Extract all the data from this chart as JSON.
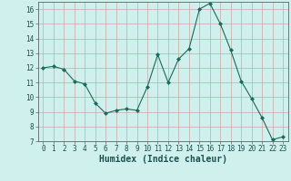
{
  "x": [
    0,
    1,
    2,
    3,
    4,
    5,
    6,
    7,
    8,
    9,
    10,
    11,
    12,
    13,
    14,
    15,
    16,
    17,
    18,
    19,
    20,
    21,
    22,
    23
  ],
  "y": [
    12.0,
    12.1,
    11.9,
    11.1,
    10.9,
    9.6,
    8.9,
    9.1,
    9.2,
    9.1,
    10.7,
    12.9,
    11.0,
    12.6,
    13.3,
    16.0,
    16.4,
    15.0,
    13.2,
    11.1,
    9.9,
    8.6,
    7.1,
    7.3
  ],
  "line_color": "#1a6b5a",
  "marker": "D",
  "marker_size": 2,
  "bg_color": "#cff0ec",
  "grid_major_color": "#c8a8a8",
  "xlabel": "Humidex (Indice chaleur)",
  "ylim": [
    7,
    16.5
  ],
  "xlim": [
    -0.5,
    23.5
  ],
  "yticks": [
    7,
    8,
    9,
    10,
    11,
    12,
    13,
    14,
    15,
    16
  ],
  "xticks": [
    0,
    1,
    2,
    3,
    4,
    5,
    6,
    7,
    8,
    9,
    10,
    11,
    12,
    13,
    14,
    15,
    16,
    17,
    18,
    19,
    20,
    21,
    22,
    23
  ],
  "tick_labelsize": 5.5,
  "xlabel_fontsize": 7,
  "xlabel_fontweight": "bold"
}
